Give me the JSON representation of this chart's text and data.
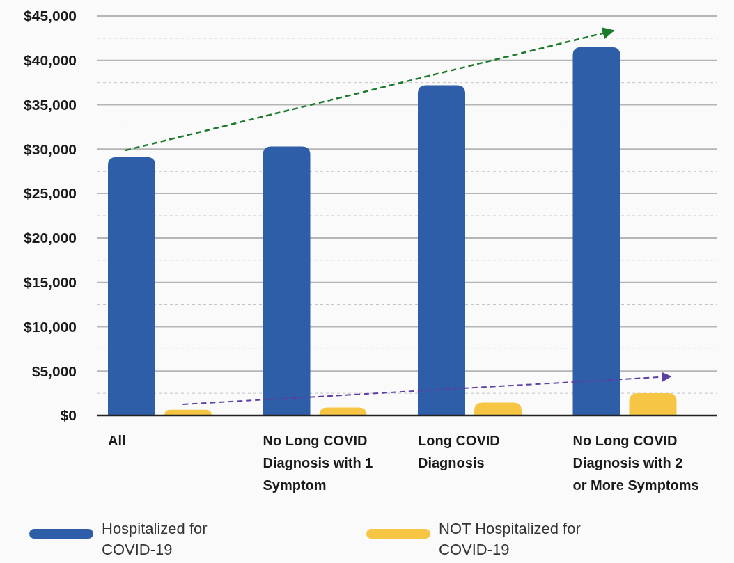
{
  "chart_data": {
    "type": "bar",
    "categories": [
      "All",
      "No Long COVID Diagnosis with 1 Symptom",
      "Long COVID Diagnosis",
      "No Long COVID Diagnosis with 2 or More Symptoms"
    ],
    "series": [
      {
        "name": "Hospitalized for COVID-19",
        "color": "#2f5ea8",
        "values": [
          29100,
          30300,
          37200,
          41500
        ]
      },
      {
        "name": "NOT Hospitalized for COVID-19",
        "color": "#f6c544",
        "values": [
          650,
          900,
          1450,
          2500
        ]
      }
    ],
    "ylim": [
      0,
      45000
    ],
    "yticks": [
      {
        "value": 0,
        "label": "$0"
      },
      {
        "value": 2500,
        "label": null
      },
      {
        "value": 5000,
        "label": "$5,000"
      },
      {
        "value": 7500,
        "label": null
      },
      {
        "value": 10000,
        "label": "$10,000"
      },
      {
        "value": 12500,
        "label": null
      },
      {
        "value": 15000,
        "label": "$15,000"
      },
      {
        "value": 17500,
        "label": null
      },
      {
        "value": 20000,
        "label": "$20,000"
      },
      {
        "value": 22500,
        "label": null
      },
      {
        "value": 25000,
        "label": "$25,000"
      },
      {
        "value": 27500,
        "label": null
      },
      {
        "value": 30000,
        "label": "$30,000"
      },
      {
        "value": 32500,
        "label": null
      },
      {
        "value": 35000,
        "label": "$35,000"
      },
      {
        "value": 37500,
        "label": null
      },
      {
        "value": 40000,
        "label": "$40,000"
      },
      {
        "value": 42500,
        "label": null
      },
      {
        "value": 45000,
        "label": "$45,000"
      }
    ],
    "grid": true,
    "legend": "bottom"
  }
}
